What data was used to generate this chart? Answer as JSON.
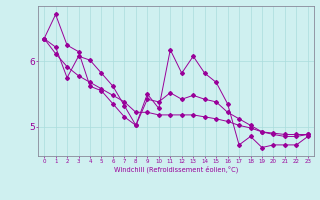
{
  "xlabel": "Windchill (Refroidissement éolien,°C)",
  "ylabel": "",
  "bg_color": "#cff0f0",
  "line_color": "#990099",
  "grid_color": "#aadddd",
  "ylim": [
    4.55,
    6.85
  ],
  "xlim": [
    -0.5,
    23.5
  ],
  "yticks": [
    5,
    6
  ],
  "xticks": [
    0,
    1,
    2,
    3,
    4,
    5,
    6,
    7,
    8,
    9,
    10,
    11,
    12,
    13,
    14,
    15,
    16,
    17,
    18,
    19,
    20,
    21,
    22,
    23
  ],
  "series": [
    [
      6.35,
      6.72,
      6.25,
      6.15,
      5.62,
      5.55,
      5.35,
      5.15,
      5.02,
      5.5,
      5.28,
      6.18,
      5.82,
      6.08,
      5.82,
      5.68,
      5.35,
      4.72,
      4.85,
      4.68,
      4.72,
      4.72,
      4.72,
      4.85
    ],
    [
      6.35,
      6.22,
      5.75,
      6.08,
      6.02,
      5.82,
      5.62,
      5.32,
      5.02,
      5.42,
      5.38,
      5.52,
      5.42,
      5.48,
      5.42,
      5.38,
      5.22,
      5.12,
      5.02,
      4.92,
      4.88,
      4.85,
      4.85,
      4.88
    ],
    [
      6.35,
      6.12,
      5.92,
      5.78,
      5.68,
      5.58,
      5.48,
      5.38,
      5.22,
      5.22,
      5.18,
      5.18,
      5.18,
      5.18,
      5.15,
      5.12,
      5.08,
      5.02,
      4.98,
      4.92,
      4.9,
      4.88,
      4.88,
      4.88
    ]
  ]
}
